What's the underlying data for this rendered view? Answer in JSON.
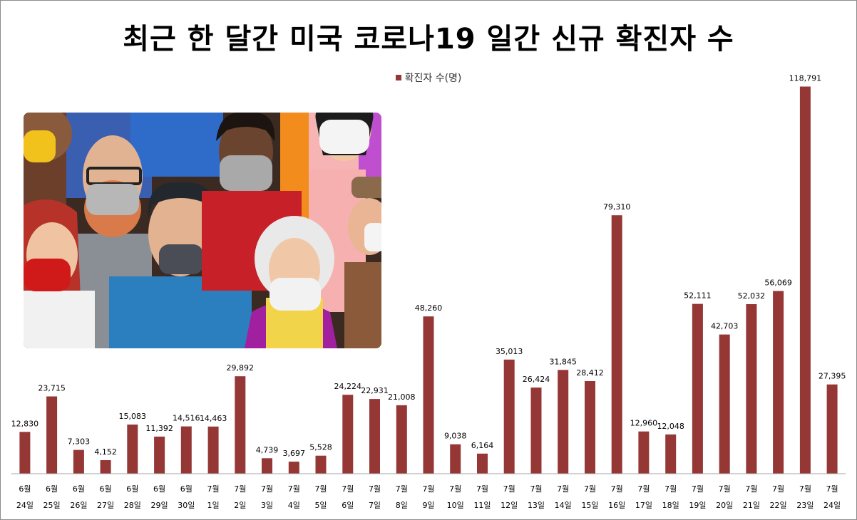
{
  "chart_data": {
    "type": "bar",
    "title": "최근 한 달간 미국 코로나19 일간 신규 확진자 수",
    "legend": [
      "확진자 수(명)"
    ],
    "legend_position": "top-center",
    "bar_color": "#953735",
    "categories": [
      [
        "6월",
        "24일"
      ],
      [
        "6월",
        "25일"
      ],
      [
        "6월",
        "26일"
      ],
      [
        "6월",
        "27일"
      ],
      [
        "6월",
        "28일"
      ],
      [
        "6월",
        "29일"
      ],
      [
        "6월",
        "30일"
      ],
      [
        "7월",
        "1일"
      ],
      [
        "7월",
        "2일"
      ],
      [
        "7월",
        "3일"
      ],
      [
        "7월",
        "4일"
      ],
      [
        "7월",
        "5일"
      ],
      [
        "7월",
        "6일"
      ],
      [
        "7월",
        "7일"
      ],
      [
        "7월",
        "8일"
      ],
      [
        "7월",
        "9일"
      ],
      [
        "7월",
        "10일"
      ],
      [
        "7월",
        "11일"
      ],
      [
        "7월",
        "12일"
      ],
      [
        "7월",
        "13일"
      ],
      [
        "7월",
        "14일"
      ],
      [
        "7월",
        "15일"
      ],
      [
        "7월",
        "16일"
      ],
      [
        "7월",
        "17일"
      ],
      [
        "7월",
        "18일"
      ],
      [
        "7월",
        "19일"
      ],
      [
        "7월",
        "20일"
      ],
      [
        "7월",
        "21일"
      ],
      [
        "7월",
        "22일"
      ],
      [
        "7월",
        "23일"
      ],
      [
        "7월",
        "24일"
      ]
    ],
    "series": [
      {
        "name": "확진자 수(명)",
        "values": [
          12830,
          23715,
          7303,
          4152,
          15083,
          11392,
          14516,
          14463,
          29892,
          4739,
          3697,
          5528,
          24224,
          22931,
          21008,
          48260,
          9038,
          6164,
          35013,
          26424,
          31845,
          28412,
          79310,
          12960,
          12048,
          52111,
          42703,
          52032,
          56069,
          118791,
          27395
        ],
        "labels": [
          "12,830",
          "23,715",
          "7,303",
          "4,152",
          "15,083",
          "11,392",
          "14,516",
          "14,463",
          "29,892",
          "4,739",
          "3,697",
          "5,528",
          "24,224",
          "22,931",
          "21,008",
          "48,260",
          "9,038",
          "6,164",
          "35,013",
          "26,424",
          "31,845",
          "28,412",
          "79,310",
          "12,960",
          "12,048",
          "52,111",
          "42,703",
          "52,032",
          "56,069",
          "118,791",
          "27,395"
        ]
      }
    ],
    "ylim": [
      0,
      120000
    ],
    "grid": false,
    "xlabel": "",
    "ylabel": ""
  }
}
